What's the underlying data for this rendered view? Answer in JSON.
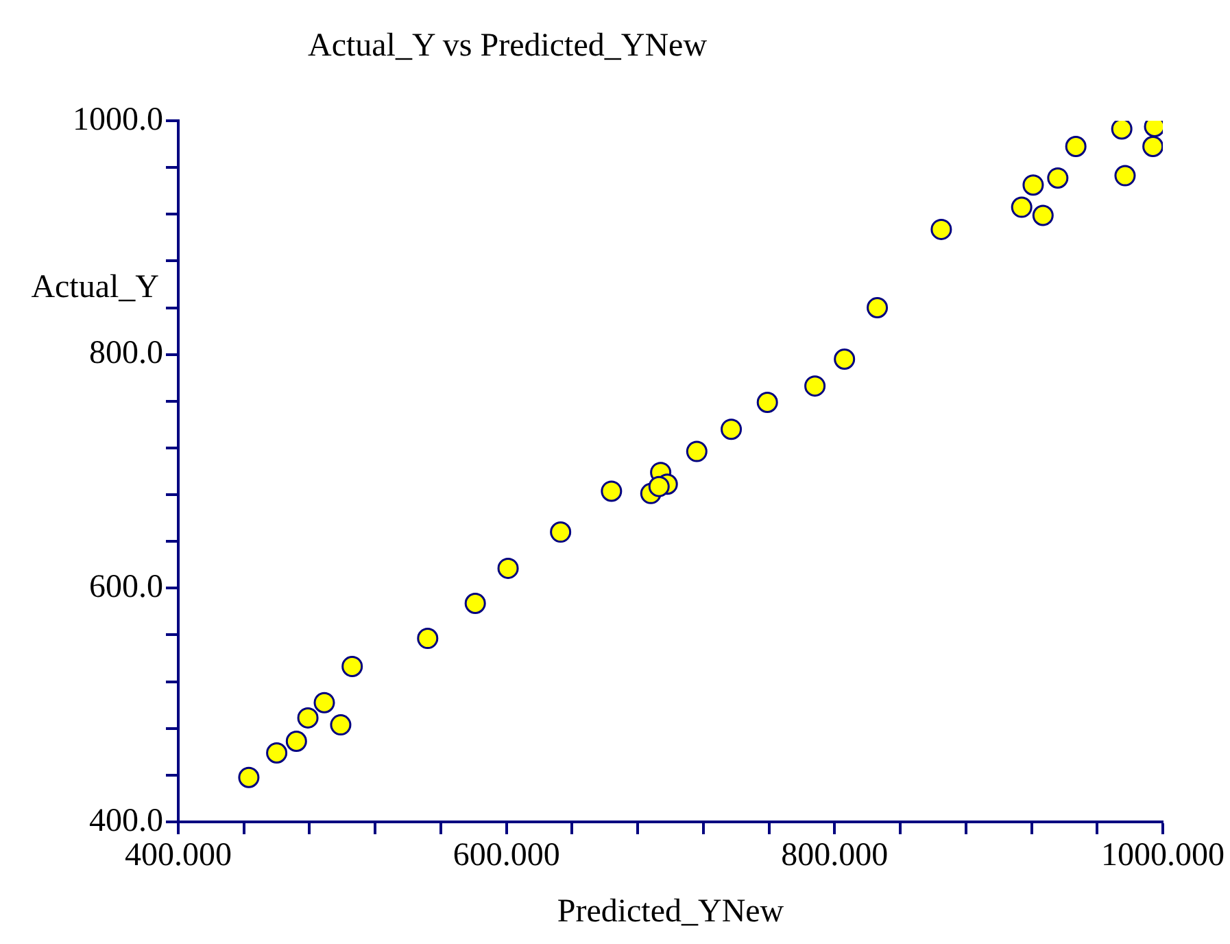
{
  "chart_data": {
    "type": "scatter",
    "title": "Actual_Y vs Predicted_YNew",
    "xlabel": "Predicted_YNew",
    "ylabel": "Actual_Y",
    "x": [
      443,
      460,
      472,
      479,
      489,
      499,
      506,
      552,
      581,
      601,
      633,
      664,
      688,
      694,
      698,
      716,
      737,
      759,
      788,
      806,
      826,
      865,
      914,
      921,
      927,
      936,
      947,
      975,
      977,
      995,
      994,
      693
    ],
    "series": [
      {
        "color": "#ffff00",
        "values": [
          438,
          459,
          469,
          489,
          502,
          483,
          533,
          557,
          587,
          617,
          648,
          683,
          681,
          699,
          689,
          717,
          736,
          759,
          773,
          796,
          840,
          907,
          926,
          945,
          919,
          951,
          978,
          993,
          953,
          995,
          978,
          687
        ]
      }
    ],
    "xlim": [
      400,
      1000
    ],
    "ylim": [
      400,
      1000
    ],
    "xticks": [
      {
        "value": 400,
        "label": "400.000"
      },
      {
        "value": 440,
        "label": null
      },
      {
        "value": 480,
        "label": null
      },
      {
        "value": 520,
        "label": null
      },
      {
        "value": 560,
        "label": null
      },
      {
        "value": 600,
        "label": "600.000"
      },
      {
        "value": 640,
        "label": null
      },
      {
        "value": 680,
        "label": null
      },
      {
        "value": 720,
        "label": null
      },
      {
        "value": 760,
        "label": null
      },
      {
        "value": 800,
        "label": "800.000"
      },
      {
        "value": 840,
        "label": null
      },
      {
        "value": 880,
        "label": null
      },
      {
        "value": 920,
        "label": null
      },
      {
        "value": 960,
        "label": null
      },
      {
        "value": 1000,
        "label": "1000.000"
      }
    ],
    "yticks": [
      {
        "value": 400,
        "label": "400.0"
      },
      {
        "value": 440,
        "label": null
      },
      {
        "value": 480,
        "label": null
      },
      {
        "value": 520,
        "label": null
      },
      {
        "value": 560,
        "label": null
      },
      {
        "value": 600,
        "label": "600.0"
      },
      {
        "value": 640,
        "label": null
      },
      {
        "value": 680,
        "label": null
      },
      {
        "value": 720,
        "label": null
      },
      {
        "value": 760,
        "label": null
      },
      {
        "value": 800,
        "label": "800.0"
      },
      {
        "value": 840,
        "label": null
      },
      {
        "value": 880,
        "label": null
      },
      {
        "value": 920,
        "label": null
      },
      {
        "value": 960,
        "label": null
      },
      {
        "value": 1000,
        "label": "1000.0"
      }
    ],
    "grid": false,
    "legend": false,
    "marker": "circle"
  }
}
